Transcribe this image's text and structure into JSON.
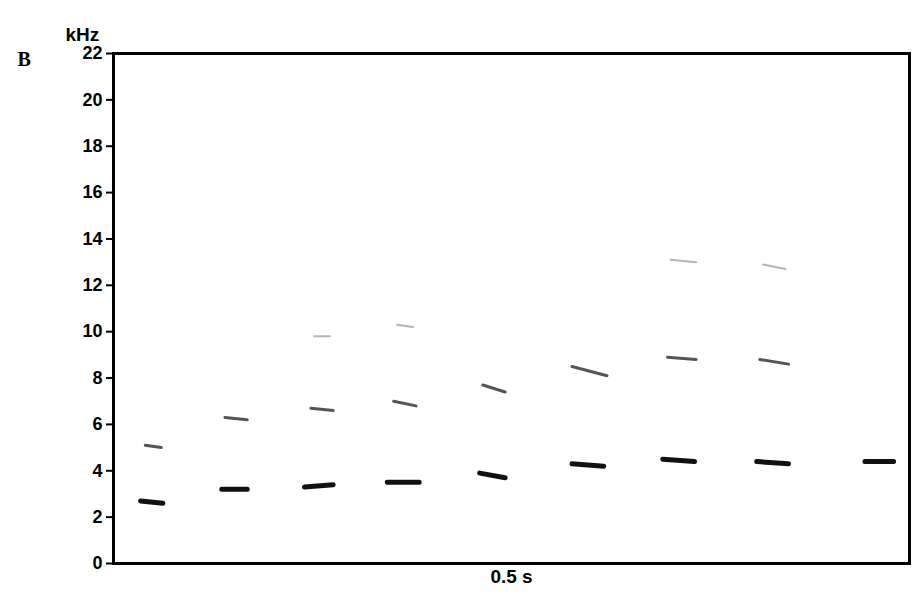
{
  "chart_data": {
    "type": "line",
    "panel_label": "B",
    "y_label": "kHz",
    "x_label": "0.5 s",
    "xlim": [
      0,
      0.5
    ],
    "ylim": [
      0,
      22
    ],
    "yticks": [
      0,
      2,
      4,
      6,
      8,
      10,
      12,
      14,
      16,
      18,
      20,
      22
    ],
    "tick_labels": "y",
    "grid": false,
    "series": [
      {
        "color": "#111111",
        "x": [
          0.017,
          0.031,
          0.05,
          0.068,
          0.084,
          0.1,
          0.12,
          0.138,
          0.155,
          0.172,
          0.192,
          0.21,
          0.23,
          0.246,
          0.27,
          0.288,
          0.308,
          0.325,
          0.345,
          0.365,
          0.385,
          0.404,
          0.424,
          0.45,
          0.472,
          0.49
        ],
        "values": [
          2.7,
          2.6,
          null,
          3.2,
          3.2,
          null,
          3.3,
          3.4,
          null,
          3.5,
          3.5,
          null,
          3.9,
          3.7,
          null,
          4.3,
          4.2,
          null,
          4.5,
          4.4,
          null,
          4.4,
          4.3,
          null,
          4.4,
          4.4
        ]
      },
      {
        "color": "#555555",
        "x": [
          0.02,
          0.03,
          0.05,
          0.07,
          0.084,
          0.1,
          0.124,
          0.138,
          0.155,
          0.176,
          0.19,
          0.21,
          0.232,
          0.246,
          0.27,
          0.288,
          0.31,
          0.33,
          0.348,
          0.366,
          0.385,
          0.406,
          0.424
        ],
        "values": [
          5.1,
          5.0,
          null,
          6.3,
          6.2,
          null,
          6.7,
          6.6,
          null,
          7.0,
          6.8,
          null,
          7.7,
          7.4,
          null,
          8.5,
          8.1,
          null,
          8.9,
          8.8,
          null,
          8.8,
          8.6
        ]
      },
      {
        "color": "#b5b5b5",
        "x": [
          0.126,
          0.136,
          0.155,
          0.178,
          0.188,
          0.27,
          0.35,
          0.366,
          0.385,
          0.408,
          0.422
        ],
        "values": [
          9.8,
          9.8,
          null,
          10.3,
          10.2,
          null,
          13.1,
          13.0,
          null,
          12.9,
          12.7
        ]
      }
    ]
  }
}
